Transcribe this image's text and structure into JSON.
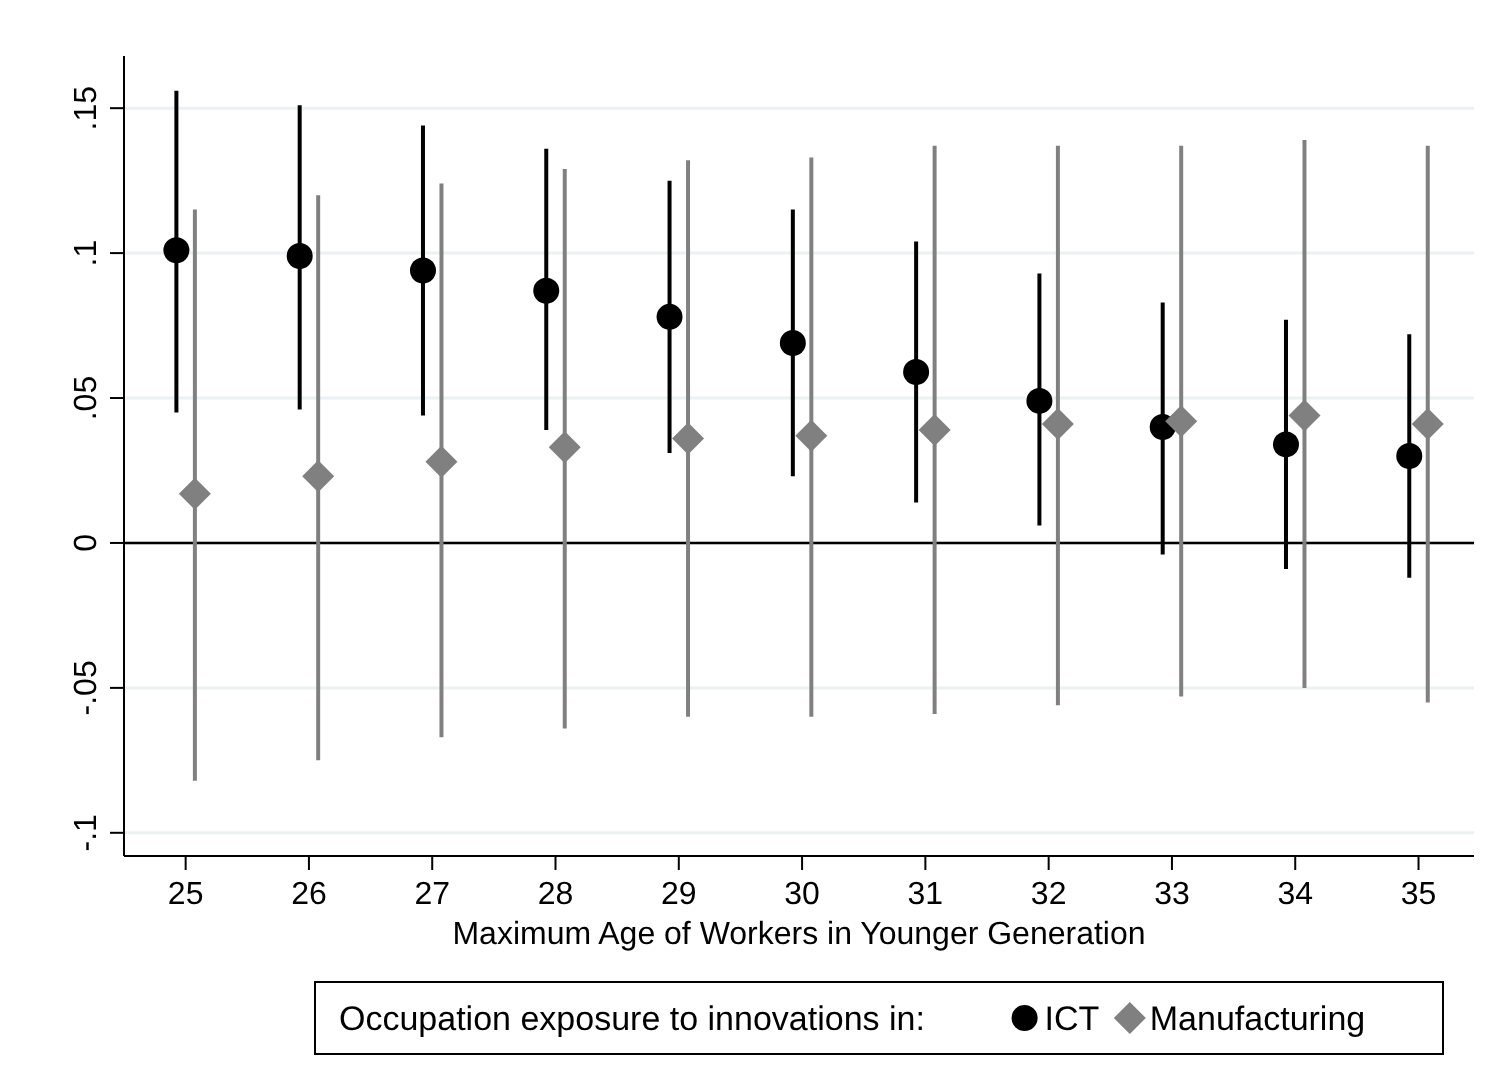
{
  "chart_data": {
    "type": "scatter",
    "xlabel": "Maximum Age of Workers in Younger Generation",
    "legend_title": "Occupation exposure to innovations in:",
    "xlim": [
      24.5,
      35.45
    ],
    "xticks": [
      25,
      26,
      27,
      28,
      29,
      30,
      31,
      32,
      33,
      34,
      35
    ],
    "ylim": [
      -0.108,
      0.168
    ],
    "yticks": [
      {
        "value": 0.15,
        "label": ".15"
      },
      {
        "value": 0.1,
        "label": ".1"
      },
      {
        "value": 0.05,
        "label": ".05"
      },
      {
        "value": 0,
        "label": "0"
      },
      {
        "value": -0.05,
        "label": "-.05"
      },
      {
        "value": -0.1,
        "label": "-.1"
      }
    ],
    "grid": "y",
    "legend": "bottom",
    "ref_lines": [
      {
        "axis": "y",
        "value": 0,
        "color": "#000000"
      }
    ],
    "series": [
      {
        "name": "ICT",
        "color": "#000000",
        "marker": "circle",
        "x": [
          24.925,
          25.925,
          26.925,
          27.925,
          28.925,
          29.925,
          30.925,
          31.925,
          32.925,
          33.925,
          34.925
        ],
        "values": [
          0.101,
          0.099,
          0.094,
          0.087,
          0.078,
          0.069,
          0.059,
          0.049,
          0.04,
          0.034,
          0.03
        ],
        "errors": [
          [
            0.045,
            0.156
          ],
          [
            0.046,
            0.151
          ],
          [
            0.044,
            0.144
          ],
          [
            0.039,
            0.136
          ],
          [
            0.031,
            0.125
          ],
          [
            0.023,
            0.115
          ],
          [
            0.014,
            0.104
          ],
          [
            0.006,
            0.093
          ],
          [
            -0.004,
            0.083
          ],
          [
            -0.009,
            0.077
          ],
          [
            -0.012,
            0.072
          ]
        ]
      },
      {
        "name": "Manufacturing",
        "color": "#808080",
        "marker": "diamond",
        "x": [
          25.075,
          26.075,
          27.075,
          28.075,
          29.075,
          30.075,
          31.075,
          32.075,
          33.075,
          34.075,
          35.075
        ],
        "values": [
          0.017,
          0.023,
          0.028,
          0.033,
          0.036,
          0.037,
          0.039,
          0.041,
          0.042,
          0.044,
          0.041
        ],
        "errors": [
          [
            -0.082,
            0.115
          ],
          [
            -0.075,
            0.12
          ],
          [
            -0.067,
            0.124
          ],
          [
            -0.064,
            0.129
          ],
          [
            -0.06,
            0.132
          ],
          [
            -0.06,
            0.133
          ],
          [
            -0.059,
            0.137
          ],
          [
            -0.056,
            0.137
          ],
          [
            -0.053,
            0.137
          ],
          [
            -0.05,
            0.139
          ],
          [
            -0.055,
            0.137
          ]
        ]
      }
    ]
  }
}
